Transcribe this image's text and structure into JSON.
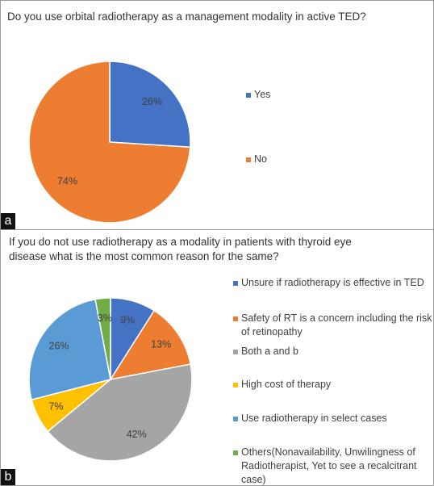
{
  "chart_data": [
    {
      "type": "pie",
      "panel_label": "a",
      "title": "Do you use orbital radiotherapy as a management modality in active TED?",
      "categories": [
        "Yes",
        "No"
      ],
      "values": [
        26,
        74
      ],
      "value_labels": [
        "26%",
        "74%"
      ],
      "colors": [
        "#4472c4",
        "#ed7d31"
      ]
    },
    {
      "type": "pie",
      "panel_label": "b",
      "title": "If you do not use radiotherapy as a modality in patients with thyroid eye disease what is the most common reason for the same?",
      "categories": [
        "Unsure if radiotherapy is effective in TED",
        "Safety of RT is a concern including the risk of retinopathy",
        "Both a and b",
        "High cost of therapy",
        "Use radiotherapy in select cases",
        "Others(Nonavailability, Unwilingness of Radiotherapist, Yet to see a recalcitrant case)"
      ],
      "values": [
        9,
        13,
        42,
        7,
        26,
        3
      ],
      "value_labels": [
        "9%",
        "13%",
        "42%",
        "7%",
        "26%",
        "3%"
      ],
      "colors": [
        "#4472c4",
        "#ed7d31",
        "#a5a5a5",
        "#ffc000",
        "#5b9bd5",
        "#70ad47"
      ]
    }
  ]
}
